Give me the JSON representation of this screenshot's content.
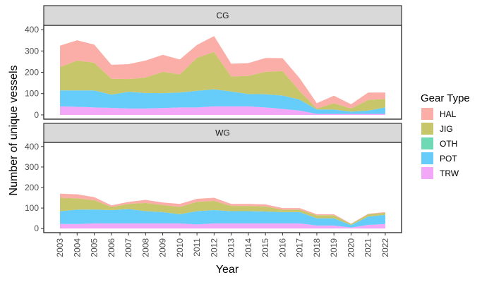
{
  "chart_data": {
    "type": "area",
    "stacked": true,
    "x": [
      2003,
      2004,
      2005,
      2006,
      2007,
      2008,
      2009,
      2010,
      2011,
      2012,
      2013,
      2014,
      2015,
      2016,
      2017,
      2018,
      2019,
      2020,
      2021,
      2022
    ],
    "xlabel": "Year",
    "ylabel": "Number of unique vessels",
    "ylim": [
      0,
      420
    ],
    "yticks": [
      0,
      100,
      200,
      300,
      400
    ],
    "legend": {
      "title": "Gear Type",
      "placement": "right",
      "entries": [
        "HAL",
        "JIG",
        "OTH",
        "POT",
        "TRW"
      ]
    },
    "stack_order_bottom_to_top": [
      "TRW",
      "OTH",
      "POT",
      "JIG",
      "HAL"
    ],
    "colors": {
      "HAL": "#fbada7",
      "JIG": "#c8c66b",
      "OTH": "#6fd9b5",
      "POT": "#66cdfa",
      "TRW": "#f2a8f6"
    },
    "panels": [
      {
        "label": "CG",
        "series": [
          {
            "name": "TRW",
            "values": [
              40,
              38,
              35,
              33,
              30,
              30,
              32,
              35,
              35,
              40,
              40,
              40,
              35,
              28,
              20,
              5,
              5,
              5,
              5,
              5
            ]
          },
          {
            "name": "OTH",
            "values": [
              0,
              0,
              0,
              0,
              0,
              0,
              0,
              0,
              0,
              0,
              0,
              0,
              0,
              0,
              0,
              0,
              0,
              0,
              0,
              0
            ]
          },
          {
            "name": "POT",
            "values": [
              75,
              77,
              80,
              62,
              78,
              73,
              70,
              70,
              78,
              80,
              70,
              58,
              62,
              63,
              52,
              20,
              20,
              10,
              15,
              30
            ]
          },
          {
            "name": "JIG",
            "values": [
              110,
              140,
              130,
              75,
              60,
              72,
              100,
              85,
              155,
              175,
              70,
              85,
              105,
              115,
              40,
              5,
              30,
              15,
              50,
              40
            ]
          },
          {
            "name": "HAL",
            "values": [
              100,
              95,
              85,
              65,
              70,
              80,
              80,
              70,
              60,
              75,
              60,
              60,
              65,
              60,
              60,
              25,
              35,
              20,
              35,
              30
            ]
          }
        ]
      },
      {
        "label": "WG",
        "series": [
          {
            "name": "TRW",
            "values": [
              22,
              22,
              25,
              25,
              25,
              25,
              25,
              25,
              20,
              25,
              25,
              25,
              25,
              25,
              25,
              15,
              15,
              5,
              18,
              22
            ]
          },
          {
            "name": "OTH",
            "values": [
              0,
              0,
              0,
              0,
              0,
              0,
              0,
              0,
              0,
              0,
              0,
              0,
              0,
              0,
              0,
              0,
              0,
              0,
              0,
              0
            ]
          },
          {
            "name": "POT",
            "values": [
              63,
              70,
              68,
              65,
              70,
              60,
              55,
              45,
              65,
              65,
              60,
              60,
              58,
              55,
              55,
              35,
              35,
              12,
              40,
              45
            ]
          },
          {
            "name": "JIG",
            "values": [
              65,
              55,
              45,
              15,
              25,
              40,
              35,
              35,
              45,
              45,
              25,
              25,
              25,
              12,
              12,
              15,
              15,
              5,
              12,
              10
            ]
          },
          {
            "name": "HAL",
            "values": [
              20,
              20,
              15,
              8,
              10,
              15,
              12,
              15,
              15,
              15,
              10,
              10,
              10,
              8,
              8,
              5,
              5,
              2,
              2,
              3
            ]
          }
        ]
      }
    ]
  }
}
